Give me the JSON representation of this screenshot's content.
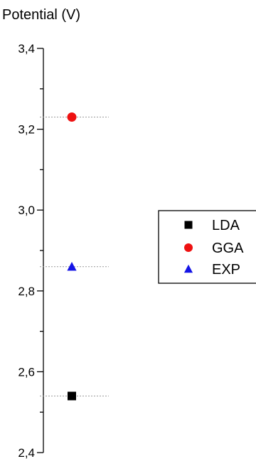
{
  "chart_data": {
    "type": "scatter",
    "ylabel": "Potential (V)",
    "ylim": [
      2.4,
      3.4
    ],
    "y_ticks": [
      {
        "value": 2.4,
        "label": "2,4"
      },
      {
        "value": 2.6,
        "label": "2,6"
      },
      {
        "value": 2.8,
        "label": "2,8"
      },
      {
        "value": 3.0,
        "label": "3,0"
      },
      {
        "value": 3.2,
        "label": "3,2"
      },
      {
        "value": 3.4,
        "label": "3,4"
      }
    ],
    "minor_tick_step": 0.1,
    "grid": false,
    "legend_position": "right",
    "series": [
      {
        "name": "LDA",
        "marker": "square",
        "color": "#000000",
        "y": 2.54
      },
      {
        "name": "GGA",
        "marker": "circle",
        "color": "#ee1111",
        "y": 3.23
      },
      {
        "name": "EXP",
        "marker": "triangle",
        "color": "#1414e6",
        "y": 2.86
      }
    ]
  }
}
